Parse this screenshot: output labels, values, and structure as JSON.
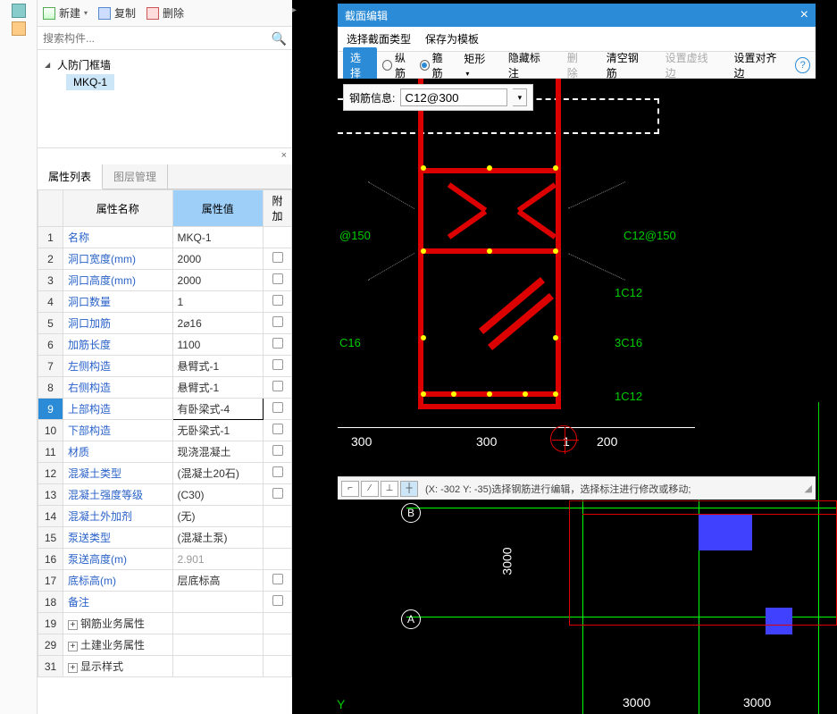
{
  "toolbar": {
    "new_label": "新建",
    "copy_label": "复制",
    "delete_label": "删除"
  },
  "search": {
    "placeholder": "搜索构件..."
  },
  "tree": {
    "root": "人防门框墙",
    "child": "MKQ-1"
  },
  "tabs": {
    "properties": "属性列表",
    "layers": "图层管理"
  },
  "prop_header": {
    "num": "",
    "name": "属性名称",
    "value": "属性值",
    "extra": "附加"
  },
  "props": [
    {
      "n": "1",
      "name": "名称",
      "val": "MKQ-1",
      "chk": false,
      "link": true
    },
    {
      "n": "2",
      "name": "洞口宽度(mm)",
      "val": "2000",
      "chk": true,
      "link": true
    },
    {
      "n": "3",
      "name": "洞口高度(mm)",
      "val": "2000",
      "chk": true,
      "link": true
    },
    {
      "n": "4",
      "name": "洞口数量",
      "val": "1",
      "chk": true,
      "link": true
    },
    {
      "n": "5",
      "name": "洞口加筋",
      "val": "2⌀16",
      "chk": true,
      "link": true
    },
    {
      "n": "6",
      "name": "加筋长度",
      "val": "1100",
      "chk": true,
      "link": true
    },
    {
      "n": "7",
      "name": "左侧构造",
      "val": "悬臂式-1",
      "chk": true,
      "link": true
    },
    {
      "n": "8",
      "name": "右侧构造",
      "val": "悬臂式-1",
      "chk": true,
      "link": true
    },
    {
      "n": "9",
      "name": "上部构造",
      "val": "有卧梁式-4",
      "chk": true,
      "link": true,
      "selected": true
    },
    {
      "n": "10",
      "name": "下部构造",
      "val": "无卧梁式-1",
      "chk": true,
      "link": true
    },
    {
      "n": "11",
      "name": "材质",
      "val": "现浇混凝土",
      "chk": true,
      "link": true
    },
    {
      "n": "12",
      "name": "混凝土类型",
      "val": "(混凝土20石)",
      "chk": true,
      "link": true
    },
    {
      "n": "13",
      "name": "混凝土强度等级",
      "val": "(C30)",
      "chk": true,
      "link": true
    },
    {
      "n": "14",
      "name": "混凝土外加剂",
      "val": "(无)",
      "chk": false,
      "link": true
    },
    {
      "n": "15",
      "name": "泵送类型",
      "val": "(混凝土泵)",
      "chk": false,
      "link": true
    },
    {
      "n": "16",
      "name": "泵送高度(m)",
      "val": "2.901",
      "chk": false,
      "link": true,
      "gray": true
    },
    {
      "n": "17",
      "name": "底标高(m)",
      "val": "层底标高",
      "chk": true,
      "link": true
    },
    {
      "n": "18",
      "name": "备注",
      "val": "",
      "chk": true,
      "link": true
    },
    {
      "n": "19",
      "name": "钢筋业务属性",
      "val": "",
      "expand": true,
      "link": false
    },
    {
      "n": "29",
      "name": "土建业务属性",
      "val": "",
      "expand": true,
      "link": false
    },
    {
      "n": "31",
      "name": "显示样式",
      "val": "",
      "expand": true,
      "link": false
    }
  ],
  "dialog": {
    "title": "截面编辑",
    "menu": {
      "select_type": "选择截面类型",
      "save_template": "保存为模板"
    },
    "toolbar": {
      "select": "选择",
      "longbar": "纵筋",
      "stirrup": "箍筋",
      "rect": "矩形",
      "hide_annot": "隐藏标注",
      "delete": "删除",
      "clear": "清空钢筋",
      "dashed": "设置虚线边",
      "align": "设置对齐边"
    },
    "info": {
      "label": "钢筋信息:",
      "value": "C12@300"
    },
    "canvas_text": {
      "d150": "@150",
      "c12_150": "C12@150",
      "c16": "C16",
      "label_1c12a": "1C12",
      "label_3c16": "3C16",
      "label_1c12b": "1C12",
      "dim300a": "300",
      "dim300b": "300",
      "dim1": "1",
      "dim200": "200"
    },
    "status": {
      "coords": "(X: -302 Y: -35)选择钢筋进行编辑，选择标注进行修改或移动;"
    }
  },
  "bg": {
    "axis_b": "B",
    "axis_a": "A",
    "y": "Y",
    "dim3000a": "3000",
    "dim3000b": "3000",
    "dim3000c": "3000"
  },
  "colors": {
    "accent": "#2b8bd6",
    "red": "#d00000",
    "green": "#00cc00",
    "yellow": "#ffff00",
    "blue_block": "#4040ff"
  }
}
